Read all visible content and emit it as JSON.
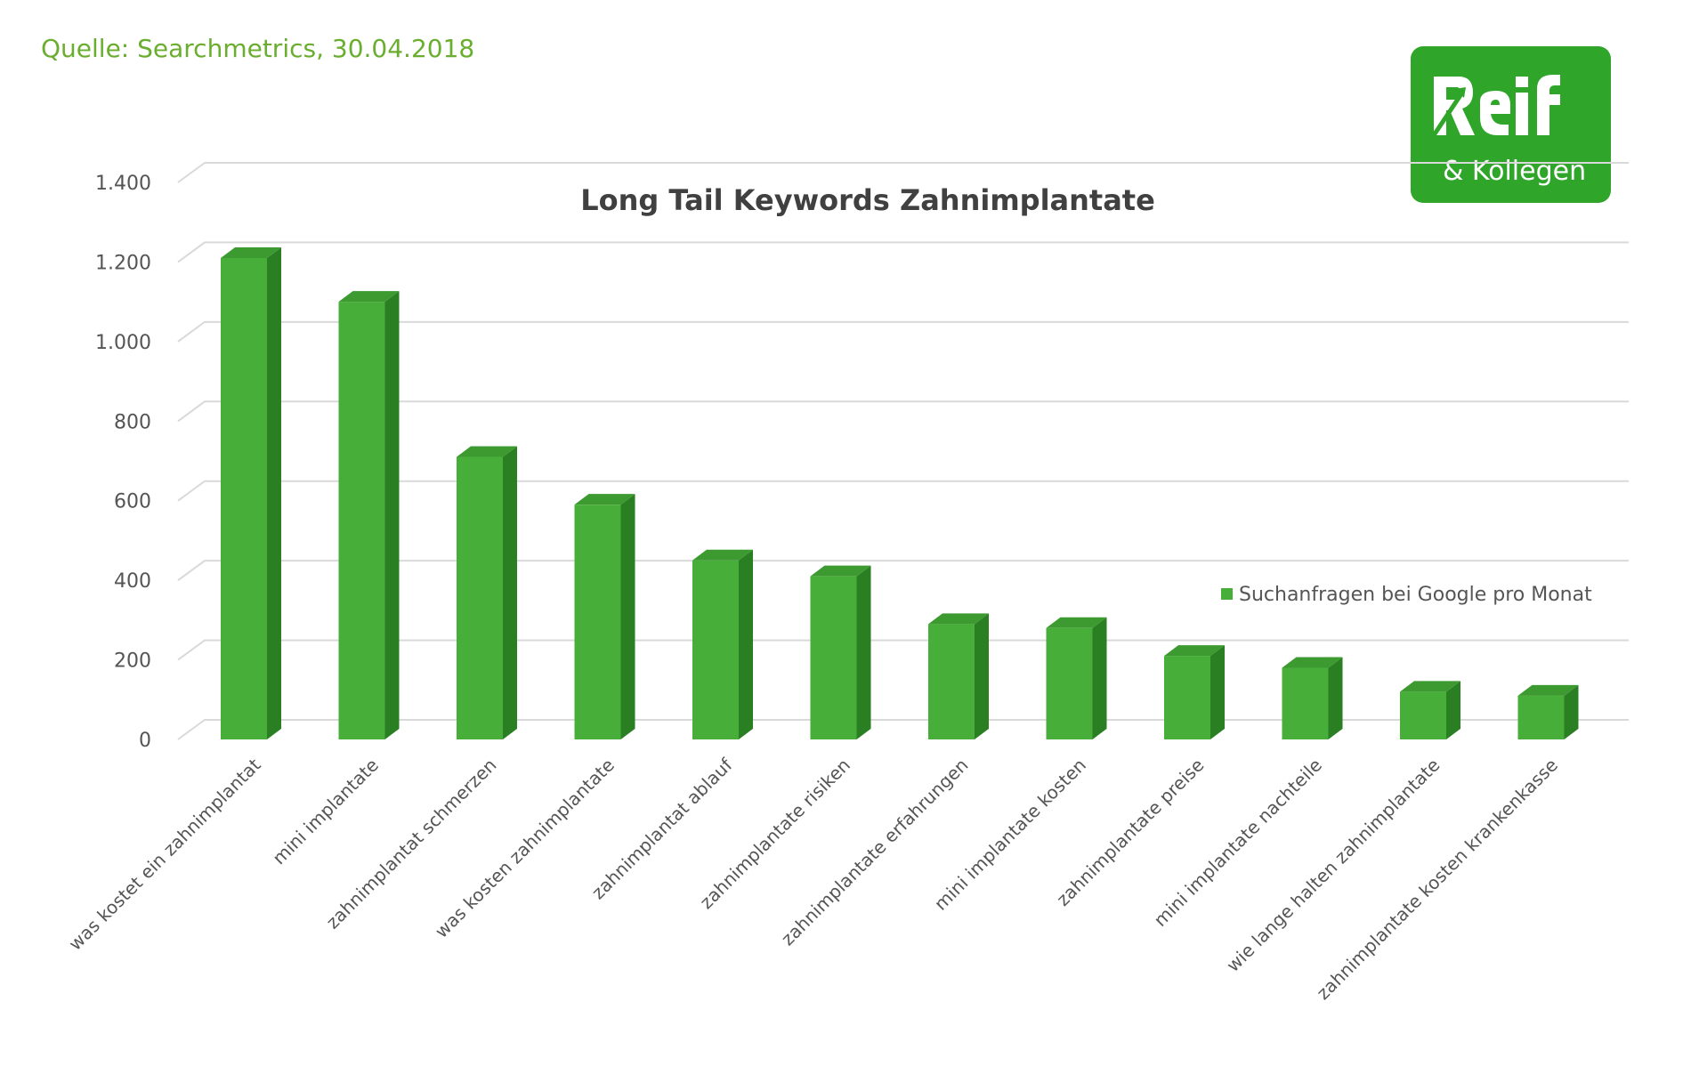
{
  "source_note": "Quelle: Searchmetrics, 30.04.2018",
  "logo": {
    "main_text": "Reif",
    "sub_text": "& Kollegen",
    "background_color": "#2fa52a"
  },
  "chart_data": {
    "type": "bar",
    "title": "Long Tail Keywords Zahnimplantate",
    "xlabel": "",
    "ylabel": "",
    "ylim": [
      0,
      1400
    ],
    "yticks": [
      0,
      200,
      400,
      600,
      800,
      1000,
      1200,
      1400
    ],
    "ytick_labels": [
      "0",
      "200",
      "400",
      "600",
      "800",
      "1.000",
      "1.200",
      "1.400"
    ],
    "grid": true,
    "legend_position": "right",
    "categories": [
      "was kostet ein zahnimplantat",
      "mini implantate",
      "zahnimplantat schmerzen",
      "was kosten zahnimplantate",
      "zahnimplantat ablauf",
      "zahnimplantate risiken",
      "zahnimplantate erfahrungen",
      "mini implantate kosten",
      "zahnimplantate preise",
      "mini implantate nachteile",
      "wie lange halten zahnimplantate",
      "zahnimplantate kosten krankenkasse"
    ],
    "series": [
      {
        "name": "Suchanfragen bei Google pro Monat",
        "color": "#48ae3a",
        "values": [
          1210,
          1100,
          710,
          590,
          450,
          410,
          290,
          280,
          210,
          180,
          120,
          110
        ]
      }
    ]
  }
}
